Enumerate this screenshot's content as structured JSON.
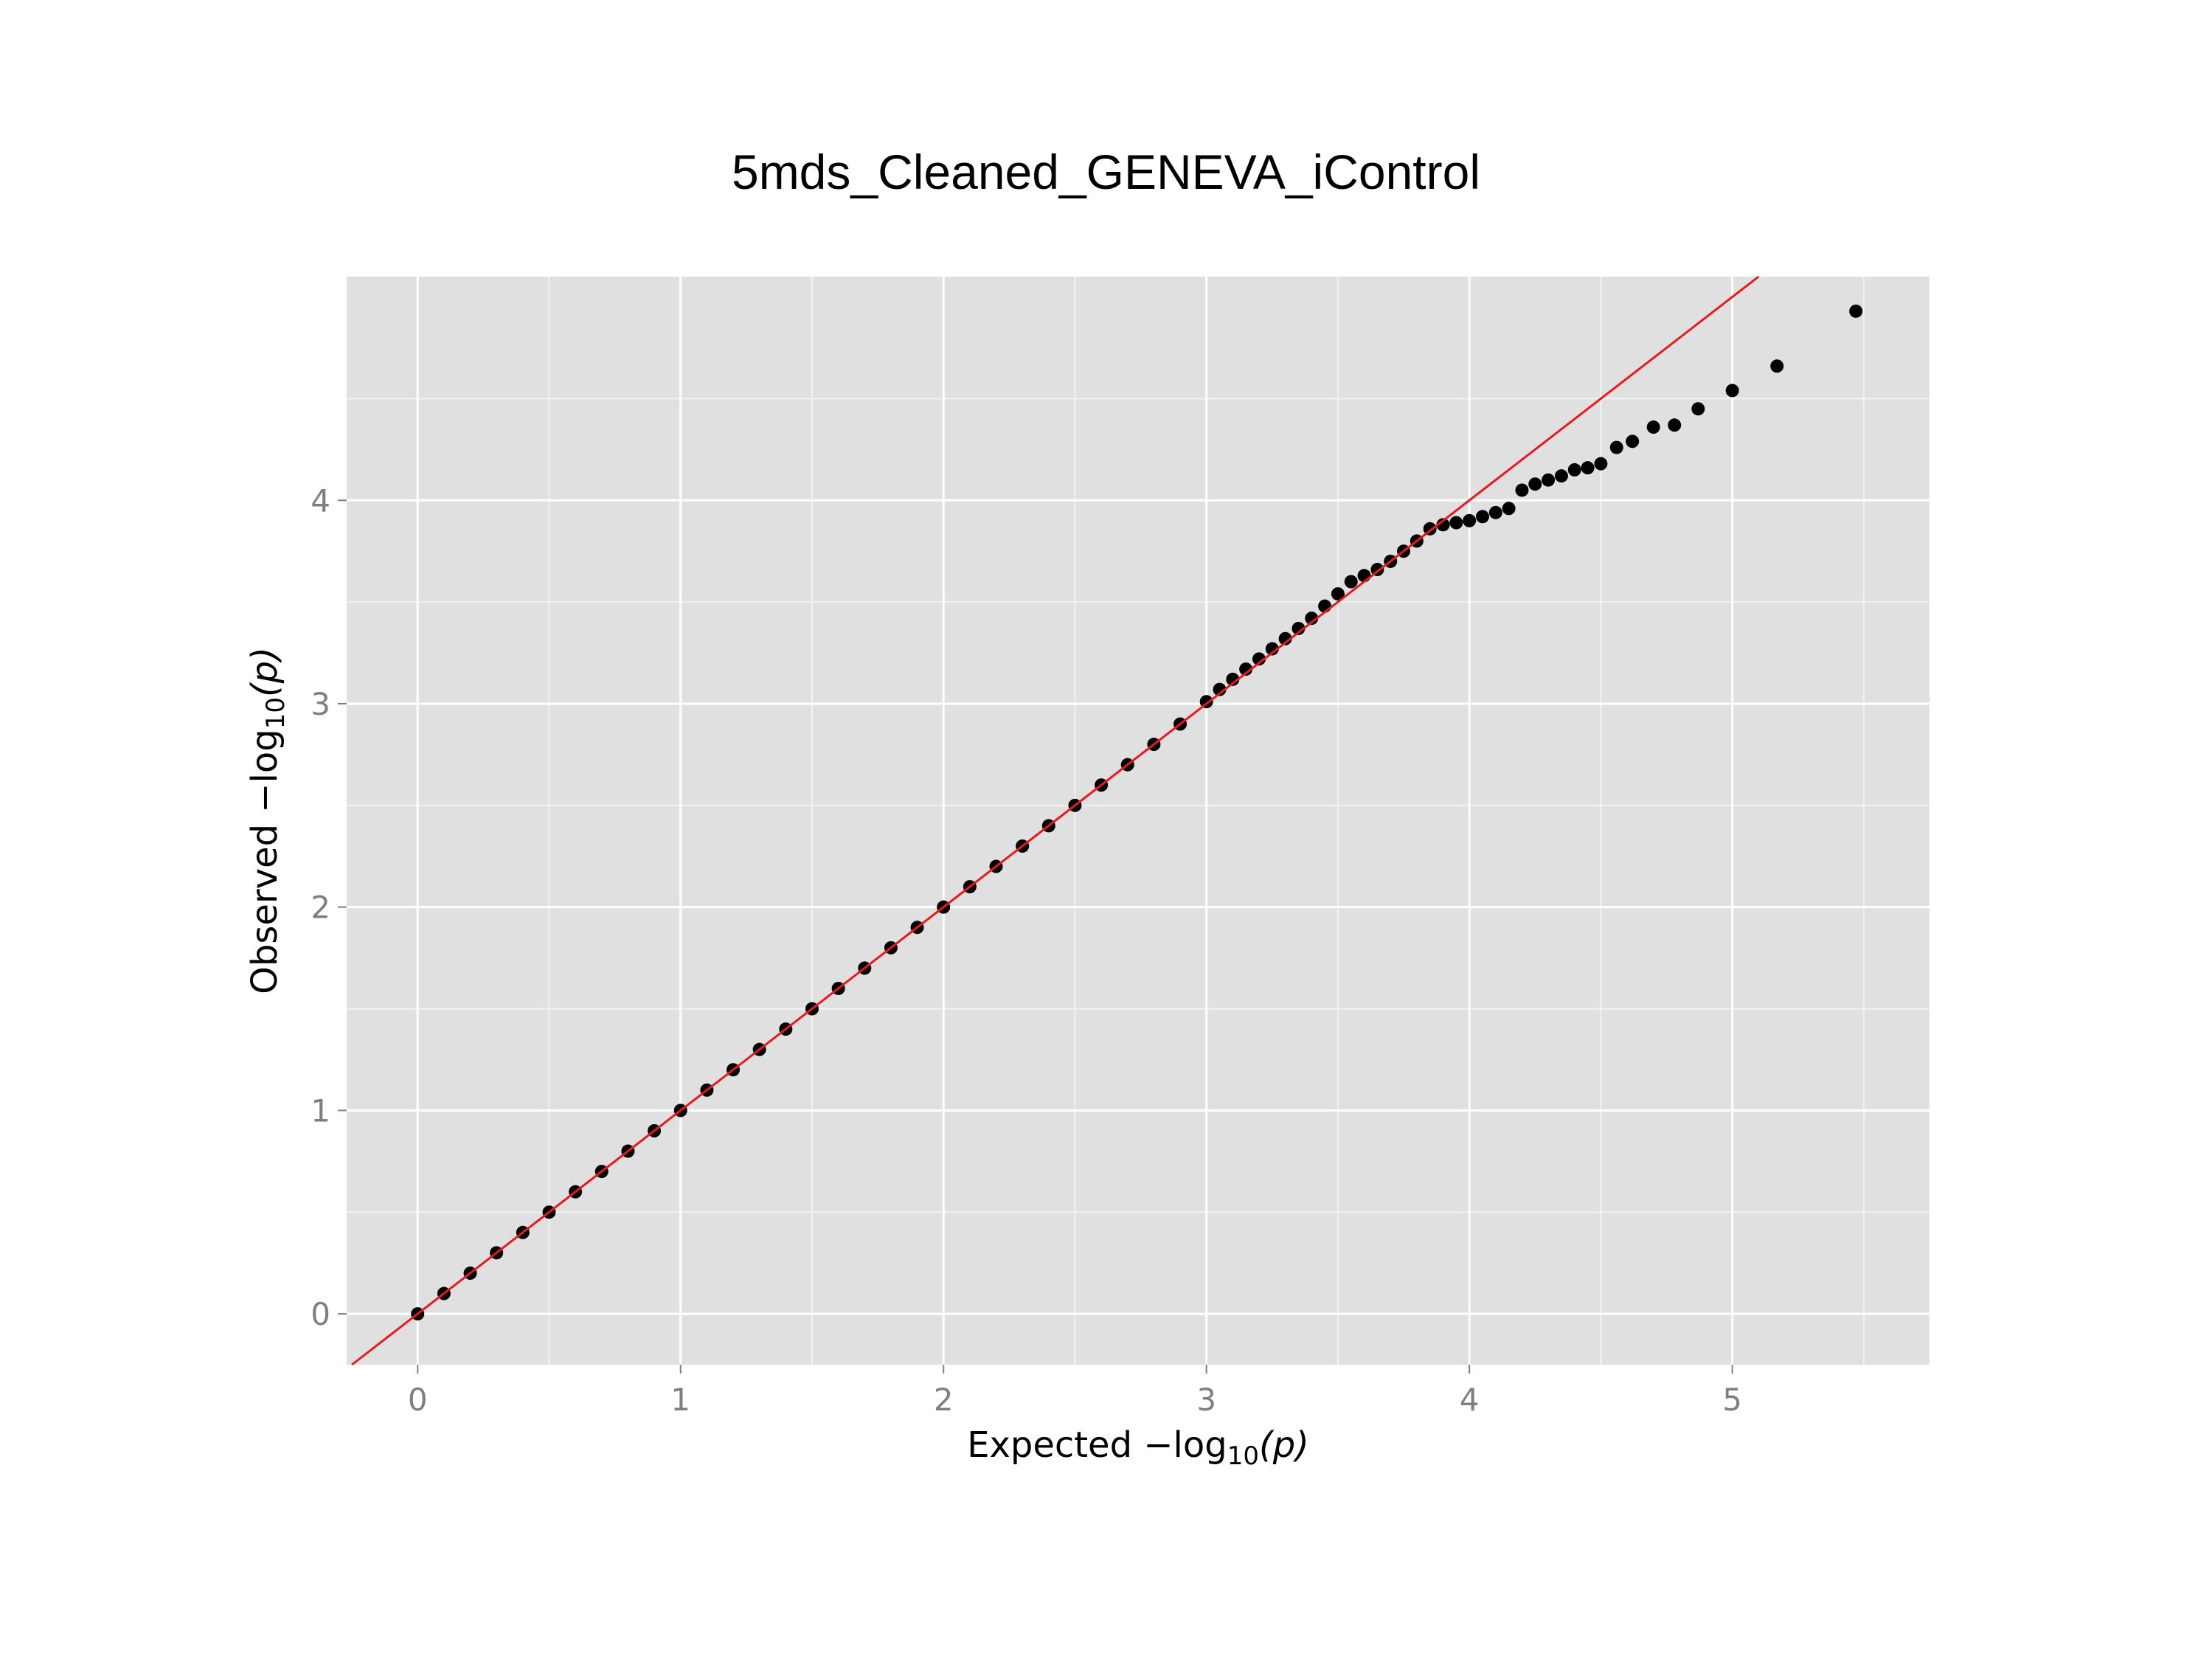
{
  "page": {
    "title": "5mds_Cleaned_GENEVA_iControl"
  },
  "chart_data": {
    "type": "scatter",
    "title": "5mds_Cleaned_GENEVA_iControl",
    "xlabel": {
      "prefix": "Expected −log",
      "subscript": "10",
      "suffix": "(p)"
    },
    "ylabel": {
      "prefix": "Observed −log",
      "subscript": "10",
      "suffix": "(p)"
    },
    "xlim": [
      -0.27,
      5.75
    ],
    "ylim": [
      -0.25,
      5.1
    ],
    "xticks": [
      0,
      1,
      2,
      3,
      4,
      5
    ],
    "yticks": [
      0,
      1,
      2,
      3,
      4
    ],
    "grid": true,
    "reference_line": {
      "slope": 1,
      "intercept": 0,
      "color": "#e41a1c"
    },
    "colors": {
      "panel": "#e0e0e0",
      "grid": "#ffffff",
      "points": "#000000",
      "reference": "#e41a1c"
    },
    "series": [
      {
        "x": [
          0.0,
          0.1,
          0.2,
          0.3,
          0.4,
          0.5,
          0.6,
          0.7,
          0.8,
          0.9,
          1.0,
          1.1,
          1.2,
          1.3,
          1.4,
          1.5,
          1.6,
          1.7,
          1.8,
          1.9,
          2.0,
          2.1,
          2.2,
          2.3,
          2.4,
          2.5,
          2.6,
          2.7,
          2.8,
          2.9,
          3.0,
          3.05,
          3.1,
          3.15,
          3.2,
          3.25,
          3.3,
          3.35,
          3.4,
          3.45,
          3.5,
          3.55,
          3.6,
          3.65,
          3.7,
          3.75,
          3.8,
          3.85,
          3.9,
          3.95,
          4.0,
          4.05,
          4.1,
          4.15,
          4.2,
          4.25,
          4.3,
          4.35,
          4.4,
          4.45,
          4.5,
          4.56,
          4.62,
          4.7,
          4.78,
          4.87,
          5.0,
          5.17,
          5.47
        ],
        "y": [
          0.0,
          0.1,
          0.2,
          0.3,
          0.4,
          0.5,
          0.6,
          0.7,
          0.8,
          0.9,
          1.0,
          1.1,
          1.2,
          1.3,
          1.4,
          1.5,
          1.6,
          1.7,
          1.8,
          1.9,
          2.0,
          2.1,
          2.2,
          2.3,
          2.4,
          2.5,
          2.6,
          2.7,
          2.8,
          2.9,
          3.01,
          3.07,
          3.12,
          3.17,
          3.22,
          3.27,
          3.32,
          3.37,
          3.42,
          3.48,
          3.54,
          3.6,
          3.63,
          3.66,
          3.7,
          3.75,
          3.8,
          3.86,
          3.88,
          3.89,
          3.9,
          3.92,
          3.94,
          3.96,
          4.05,
          4.08,
          4.1,
          4.12,
          4.15,
          4.16,
          4.18,
          4.26,
          4.29,
          4.36,
          4.37,
          4.45,
          4.54,
          4.66,
          4.93
        ]
      }
    ]
  }
}
